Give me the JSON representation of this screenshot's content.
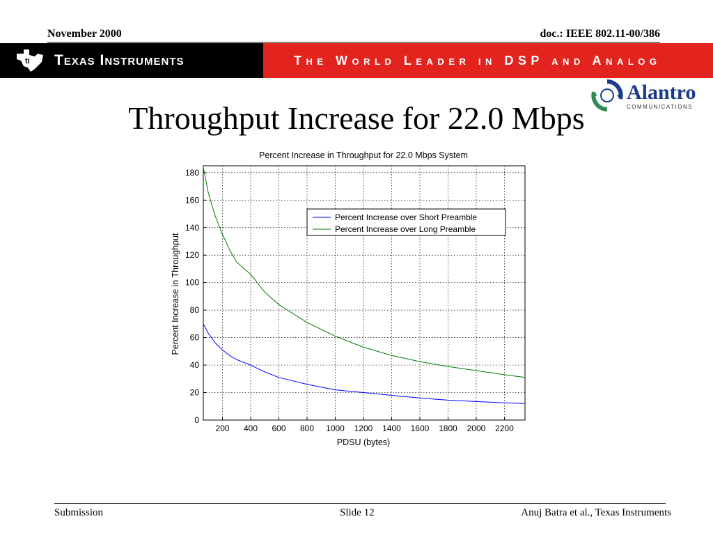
{
  "header": {
    "date": "November 2000",
    "doc": "doc.: IEEE 802.11-00/386"
  },
  "banner": {
    "company": "Texas Instruments",
    "tagline": "The World Leader in DSP and Analog",
    "logo_icon": "texas-state-logo-icon",
    "colors": {
      "left": "#000000",
      "right": "#e3231e",
      "text": "#ffffff"
    }
  },
  "partner_logo": {
    "name": "Alantro",
    "sub": "COMMUNICATIONS",
    "icon": "circular-arrows-icon",
    "colors": {
      "word": "#1b3b8a",
      "arc_blue": "#1b3b8a",
      "arc_green": "#2e8b57"
    }
  },
  "slide": {
    "title": "Throughput Increase for 22.0 Mbps"
  },
  "chart_data": {
    "type": "line",
    "title": "Percent Increase in Throughput for 22.0 Mbps System",
    "xlabel": "PDSU (bytes)",
    "ylabel": "Percent Increase in Throughput",
    "xlim": [
      64,
      2346
    ],
    "ylim": [
      0,
      185
    ],
    "xticks": [
      200,
      400,
      600,
      800,
      1000,
      1200,
      1400,
      1600,
      1800,
      2000,
      2200
    ],
    "yticks": [
      0,
      20,
      40,
      60,
      80,
      100,
      120,
      140,
      160,
      180
    ],
    "grid": true,
    "grid_style": "dotted",
    "legend_position": "upper-right",
    "series": [
      {
        "name": "Percent Increase over Short Preamble",
        "color": "#0000ff",
        "x": [
          64,
          100,
          150,
          200,
          250,
          300,
          400,
          500,
          600,
          800,
          1000,
          1200,
          1400,
          1600,
          1800,
          2000,
          2200,
          2346
        ],
        "y": [
          70,
          63,
          56,
          51,
          47,
          44,
          40,
          35,
          31,
          26,
          22,
          20,
          18,
          16,
          14.5,
          13.5,
          12.5,
          12
        ]
      },
      {
        "name": "Percent Increase over Long Preamble",
        "color": "#007a00",
        "x": [
          64,
          100,
          150,
          200,
          250,
          300,
          400,
          500,
          600,
          800,
          1000,
          1200,
          1400,
          1600,
          1800,
          2000,
          2200,
          2346
        ],
        "y": [
          184,
          165,
          148,
          135,
          124,
          115,
          106,
          93,
          84,
          71,
          61,
          53,
          47,
          42.5,
          39,
          36,
          33,
          31
        ]
      }
    ]
  },
  "footer": {
    "left": "Submission",
    "center": "Slide 12",
    "right": "Anuj Batra et al., Texas Instruments"
  }
}
